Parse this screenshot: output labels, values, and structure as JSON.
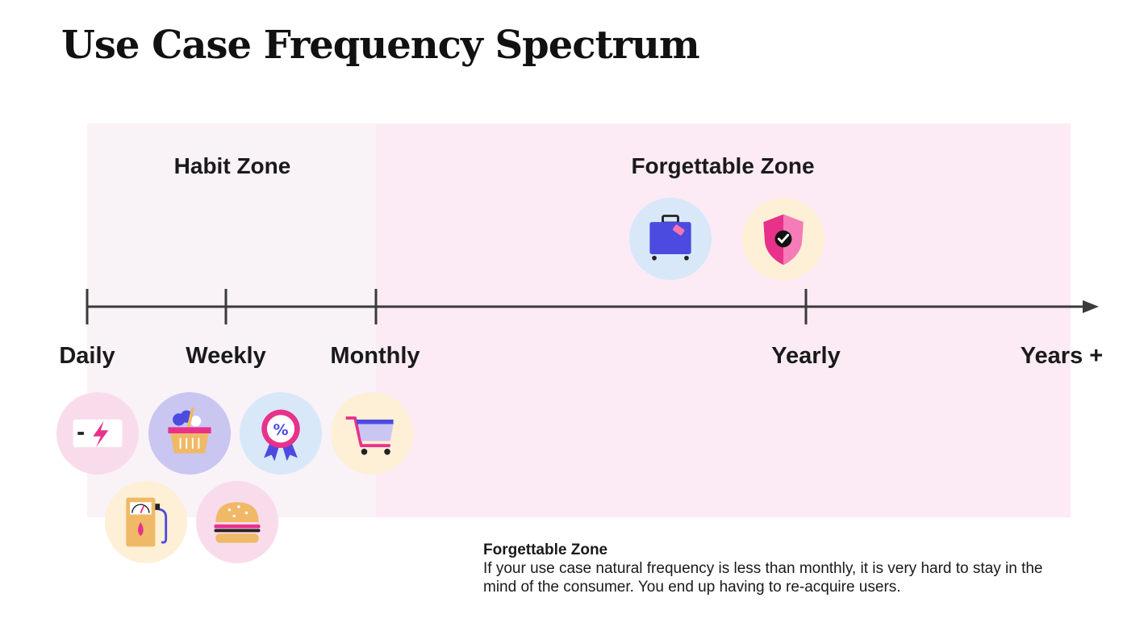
{
  "title": "Use Case Frequency Spectrum",
  "zones": {
    "habit": "Habit Zone",
    "forgettable": "Forgettable Zone"
  },
  "axis": {
    "ticks": [
      "Daily",
      "Weekly",
      "Monthly",
      "Yearly",
      "Years +"
    ]
  },
  "icons": {
    "daily": [
      "battery-charging-icon",
      "fuel-pump-icon"
    ],
    "weekly": [
      "grocery-basket-icon",
      "burger-icon"
    ],
    "monthly": [
      "discount-badge-icon",
      "shopping-cart-icon"
    ],
    "yearly": [
      "suitcase-icon",
      "insurance-shield-icon"
    ]
  },
  "colors": {
    "habit_zone_bg": "#f9f2f7",
    "forgettable_zone_bg": "#fcebf4",
    "circle_pink": "#f9dcec",
    "circle_lavender": "#c9c6f2",
    "circle_blue": "#d8e8f8",
    "circle_cream": "#fdf0d6",
    "accent_pink": "#e8318a",
    "accent_blue": "#4c4be0",
    "accent_tan": "#f0b968"
  },
  "note": {
    "title": "Forgettable Zone",
    "body": "If your use case natural frequency is less than monthly, it is very hard to stay in the mind of the consumer. You end up having to re-acquire users."
  }
}
